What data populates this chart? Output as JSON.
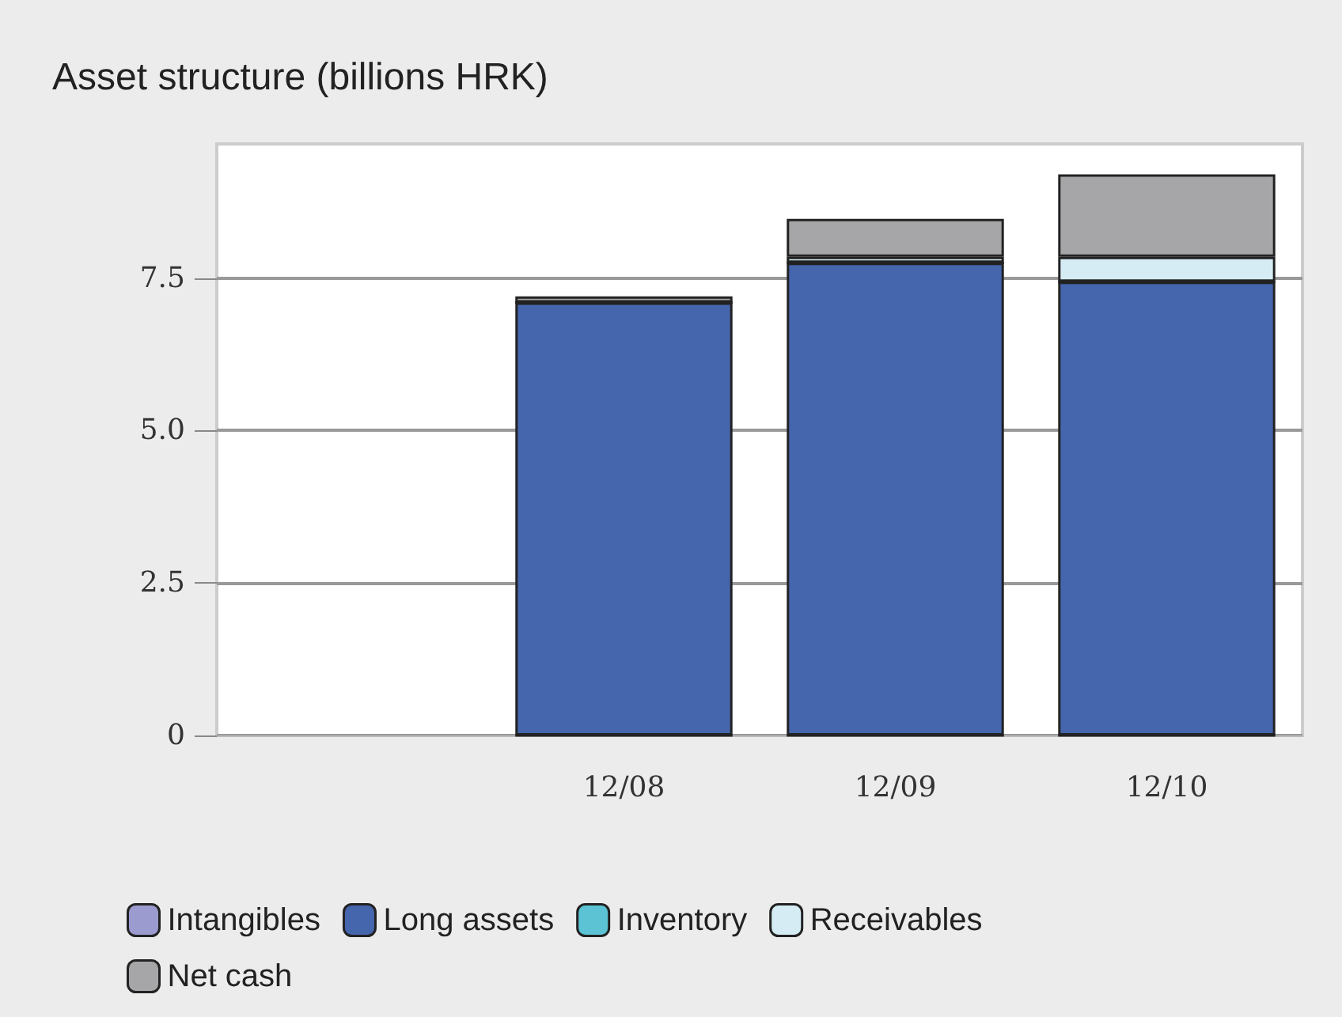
{
  "chart_data": {
    "type": "bar",
    "title": "Asset structure (billions HRK)",
    "categories": [
      null,
      "12/08",
      "12/09",
      "12/10"
    ],
    "stacked": true,
    "series": [
      {
        "name": "Intangibles",
        "color": "#9b9bd0",
        "values": [
          null,
          0,
          0,
          0
        ]
      },
      {
        "name": "Long assets",
        "color": "#4565ad",
        "values": [
          null,
          7.1,
          7.75,
          7.44
        ]
      },
      {
        "name": "Inventory",
        "color": "#5bc3d3",
        "values": [
          null,
          0,
          0,
          0
        ]
      },
      {
        "name": "Receivables",
        "color": "#d5ecf5",
        "values": [
          null,
          0,
          0.1,
          0.41
        ]
      },
      {
        "name": "Net cash",
        "color": "#a6a6a8",
        "values": [
          null,
          0.1,
          0.62,
          1.35
        ]
      }
    ],
    "ylim": [
      0,
      9.7
    ],
    "yticks": [
      0,
      2.5,
      {
        "value": 5,
        "label": "5.0"
      },
      7.5
    ],
    "grid": "y",
    "legend": "bottom"
  }
}
